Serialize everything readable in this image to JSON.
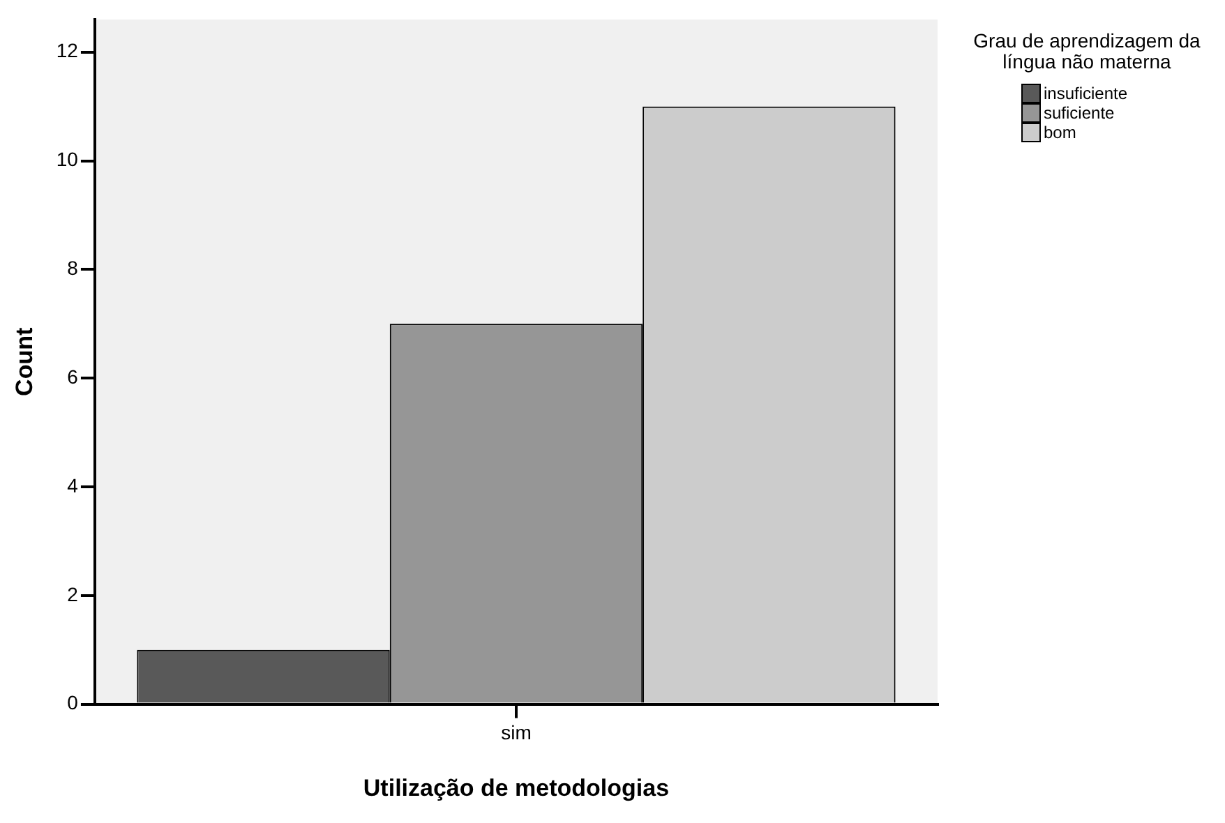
{
  "chart_data": {
    "type": "bar",
    "xlabel": "Utilização de metodologias",
    "ylabel": "Count",
    "legend_title": "Grau de aprendizagem da língua não materna",
    "categories": [
      "sim"
    ],
    "series": [
      {
        "name": "insuficiente",
        "color": "#595959",
        "values": [
          1
        ]
      },
      {
        "name": "suficiente",
        "color": "#969696",
        "values": [
          7
        ]
      },
      {
        "name": "bom",
        "color": "#cccccc",
        "values": [
          11
        ]
      }
    ],
    "ylim": [
      0,
      12.6
    ],
    "yticks": [
      0,
      2,
      4,
      6,
      8,
      10,
      12
    ],
    "grid": false,
    "legend": "top right"
  }
}
